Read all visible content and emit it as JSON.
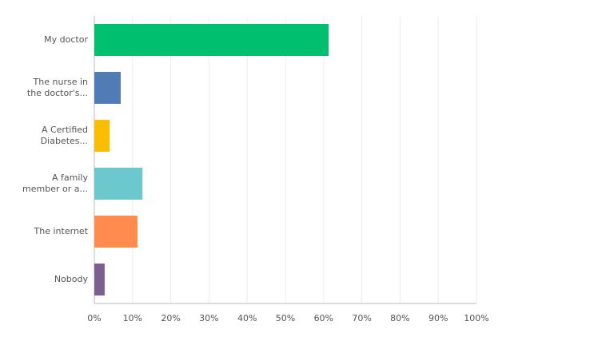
{
  "chart_data": {
    "type": "hbar",
    "categories": [
      "My doctor",
      "The nurse in\nthe doctor's...",
      "A Certified\nDiabetes...",
      "A family\nmember or a...",
      "The internet",
      "Nobody"
    ],
    "values": [
      61.3,
      6.9,
      4.0,
      12.6,
      11.3,
      2.7
    ],
    "colors": [
      "#00bf6f",
      "#507cb6",
      "#f9be00",
      "#6bc8cd",
      "#ff8b4f",
      "#7d5e90"
    ],
    "xlim": [
      0,
      100
    ],
    "xticks": [
      {
        "value": 0,
        "label": "0%"
      },
      {
        "value": 10,
        "label": "10%"
      },
      {
        "value": 20,
        "label": "20%"
      },
      {
        "value": 30,
        "label": "30%"
      },
      {
        "value": 40,
        "label": "40%"
      },
      {
        "value": 50,
        "label": "50%"
      },
      {
        "value": 60,
        "label": "60%"
      },
      {
        "value": 70,
        "label": "70%"
      },
      {
        "value": 80,
        "label": "80%"
      },
      {
        "value": 90,
        "label": "90%"
      },
      {
        "value": 100,
        "label": "100%"
      }
    ],
    "grid": true
  }
}
